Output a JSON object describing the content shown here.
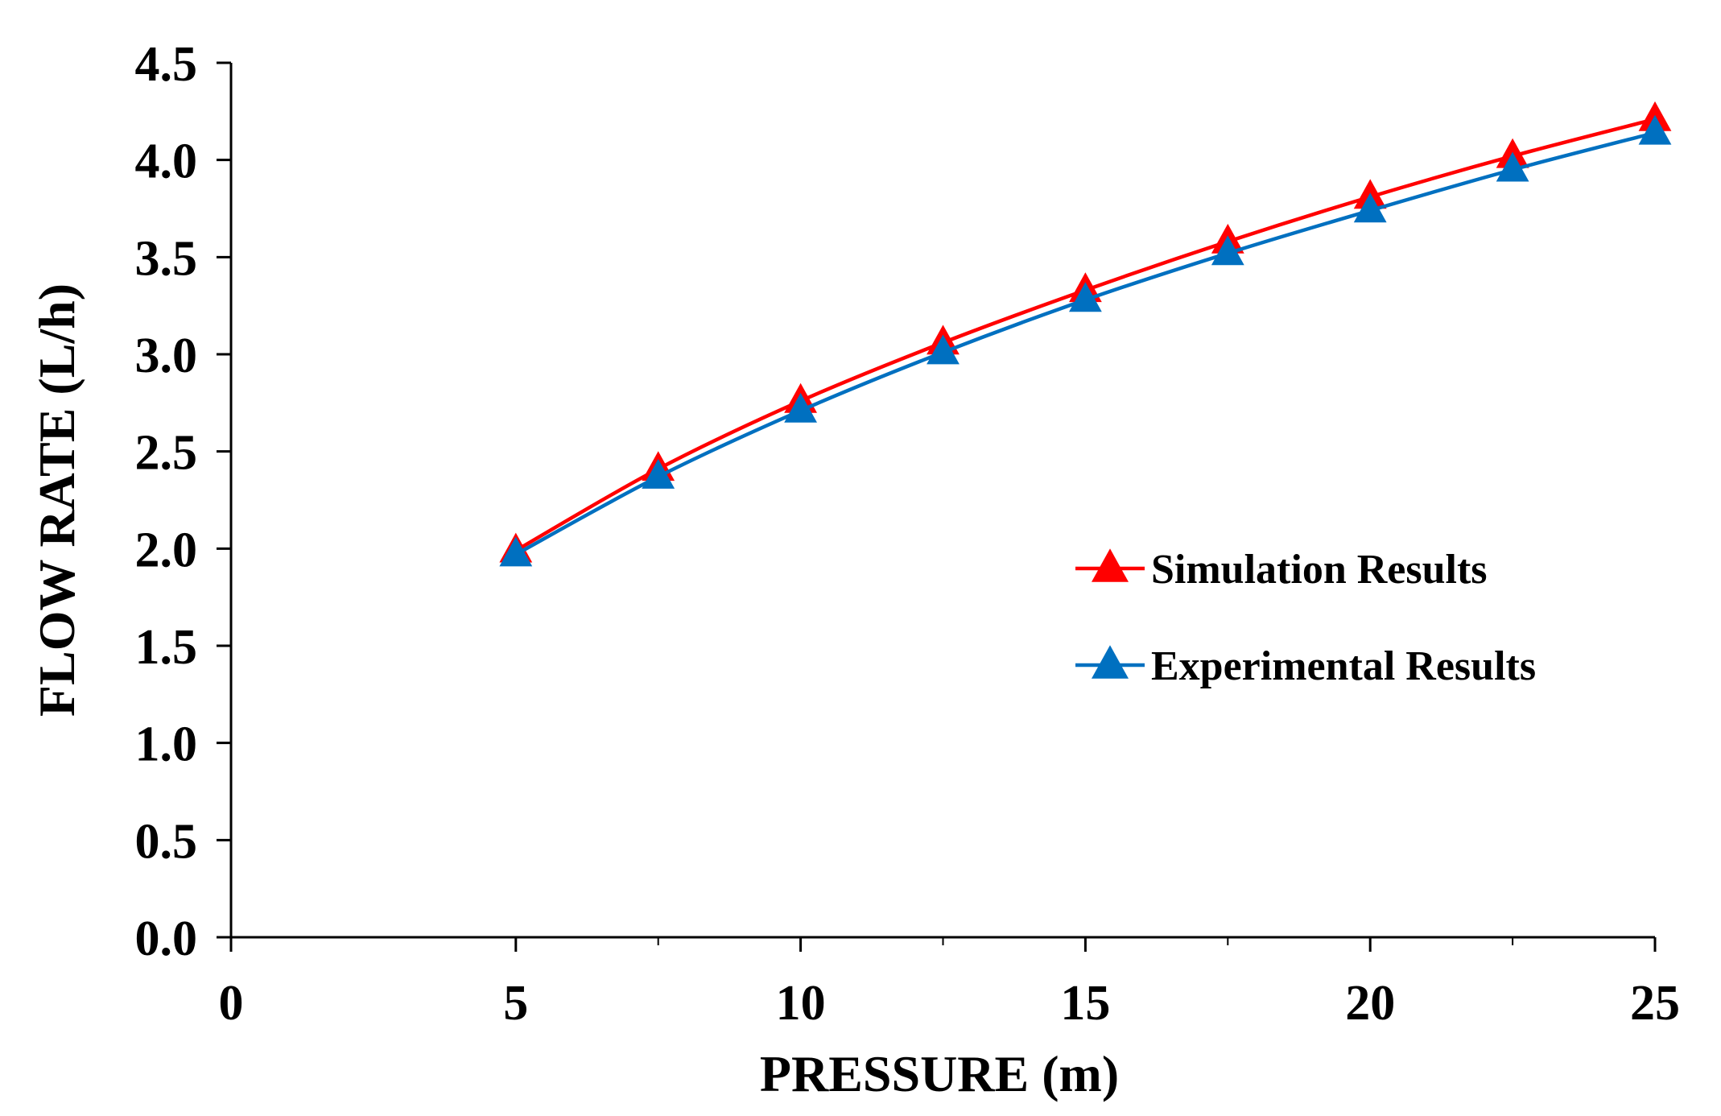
{
  "chart_data": {
    "type": "line",
    "title": "",
    "xlabel": "PRESSURE (m)",
    "ylabel": "FLOW RATE (L/h)",
    "xlim": [
      0,
      25
    ],
    "ylim": [
      0.0,
      4.5
    ],
    "x_ticks": [
      0,
      5,
      10,
      15,
      20,
      25
    ],
    "x_tick_labels": [
      "0",
      "5",
      "10",
      "15",
      "20",
      "25"
    ],
    "y_ticks": [
      0.0,
      0.5,
      1.0,
      1.5,
      2.0,
      2.5,
      3.0,
      3.5,
      4.0,
      4.5
    ],
    "y_tick_labels": [
      "0.0",
      "0.5",
      "1.0",
      "1.5",
      "2.0",
      "2.5",
      "3.0",
      "3.5",
      "4.0",
      "4.5"
    ],
    "x_minor_ticks": [
      7.5,
      12.5,
      17.5,
      22.5
    ],
    "grid": false,
    "legend_position": "center-right",
    "series": [
      {
        "name": "Simulation Results",
        "color": "#ff0000",
        "marker": "triangle",
        "x": [
          5,
          7.5,
          10,
          12.5,
          15,
          17.5,
          20,
          22.5,
          25
        ],
        "values": [
          1.99,
          2.41,
          2.76,
          3.06,
          3.33,
          3.58,
          3.81,
          4.02,
          4.21
        ]
      },
      {
        "name": "Experimental Results",
        "color": "#0070c0",
        "marker": "triangle",
        "x": [
          5,
          7.5,
          10,
          12.5,
          15,
          17.5,
          20,
          22.5,
          25
        ],
        "values": [
          1.97,
          2.37,
          2.71,
          3.01,
          3.28,
          3.52,
          3.74,
          3.95,
          4.14
        ]
      }
    ]
  }
}
